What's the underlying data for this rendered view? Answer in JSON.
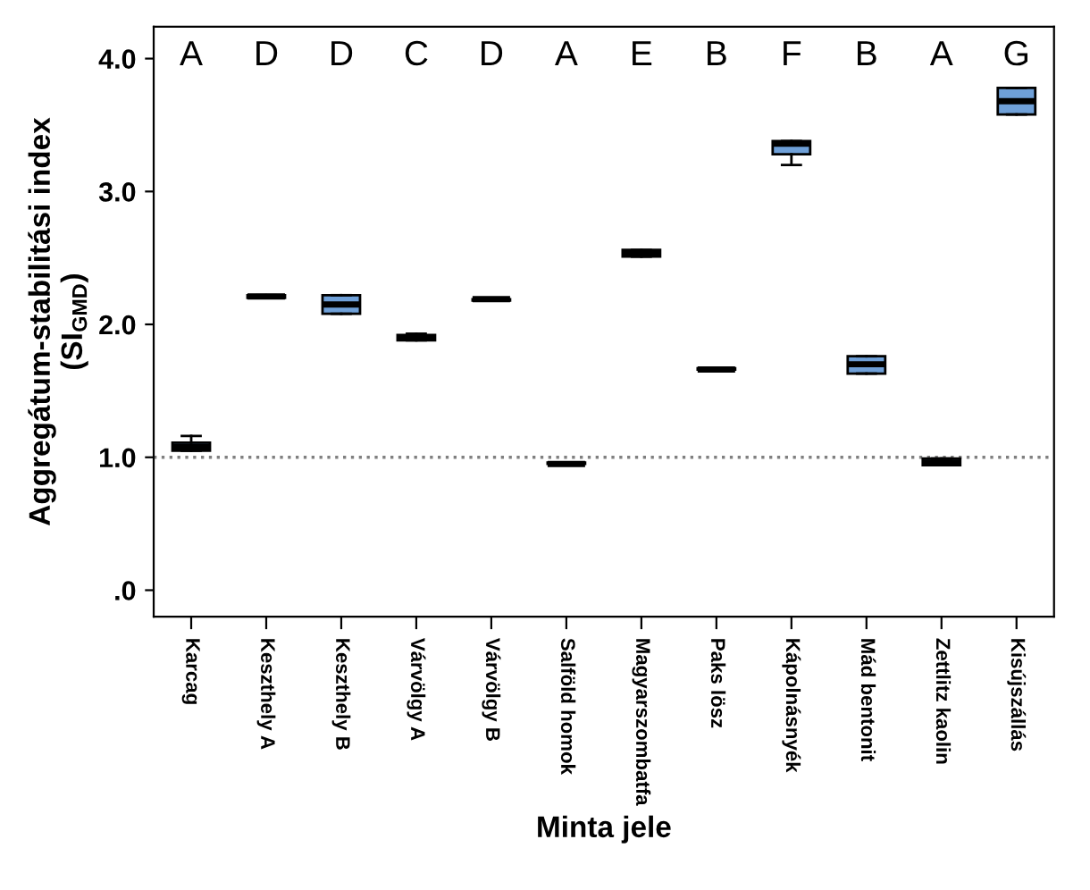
{
  "chart_data": {
    "type": "box",
    "xlabel": "Minta jele",
    "ylabel": "Aggregátum-stabilitási index\n(SI$_{GMD}$)",
    "categories": [
      "Karcag",
      "Keszthely A",
      "Keszthely B",
      "Várvölgy A",
      "Várvölgy B",
      "Salföld homok",
      "Magyarszombatfa",
      "Paks lösz",
      "Kápolnásnyék",
      "Mád bentonit",
      "Zettlitz kaolin",
      "Kisújszállás"
    ],
    "color": "#6fa0d8",
    "boxes": [
      {
        "low": 1.05,
        "q1": 1.05,
        "median": 1.08,
        "q3": 1.11,
        "high": 1.16
      },
      {
        "low": 2.2,
        "q1": 2.2,
        "median": 2.21,
        "q3": 2.22,
        "high": 2.22
      },
      {
        "low": 2.08,
        "q1": 2.08,
        "median": 2.15,
        "q3": 2.22,
        "high": 2.22
      },
      {
        "low": 1.88,
        "q1": 1.88,
        "median": 1.9,
        "q3": 1.92,
        "high": 1.93
      },
      {
        "low": 2.18,
        "q1": 2.18,
        "median": 2.19,
        "q3": 2.19,
        "high": 2.19
      },
      {
        "low": 0.95,
        "q1": 0.95,
        "median": 0.95,
        "q3": 0.96,
        "high": 0.96
      },
      {
        "low": 2.51,
        "q1": 2.51,
        "median": 2.54,
        "q3": 2.56,
        "high": 2.56
      },
      {
        "low": 1.66,
        "q1": 1.66,
        "median": 1.66,
        "q3": 1.67,
        "high": 1.67
      },
      {
        "low": 3.2,
        "q1": 3.28,
        "median": 3.36,
        "q3": 3.38,
        "high": 3.38
      },
      {
        "low": 1.63,
        "q1": 1.63,
        "median": 1.7,
        "q3": 1.76,
        "high": 1.76
      },
      {
        "low": 0.94,
        "q1": 0.94,
        "median": 0.96,
        "q3": 0.99,
        "high": 0.99
      },
      {
        "low": 3.58,
        "q1": 3.58,
        "median": 3.68,
        "q3": 3.78,
        "high": 3.78
      }
    ],
    "ylim": [
      -0.2,
      4.24
    ],
    "yticks": [
      {
        "value": 0,
        "label": ".0"
      },
      {
        "value": 1,
        "label": "1.0"
      },
      {
        "value": 2,
        "label": "2.0"
      },
      {
        "value": 3,
        "label": "3.0"
      },
      {
        "value": 4,
        "label": "4.0"
      }
    ],
    "ref_lines": [
      {
        "axis": "y",
        "value": 1.0,
        "color": "#808080",
        "line_style": "dotted"
      }
    ],
    "annotations": [
      "A",
      "D",
      "D",
      "C",
      "D",
      "A",
      "E",
      "B",
      "F",
      "B",
      "A",
      "G"
    ],
    "grid": false,
    "legend": false
  }
}
